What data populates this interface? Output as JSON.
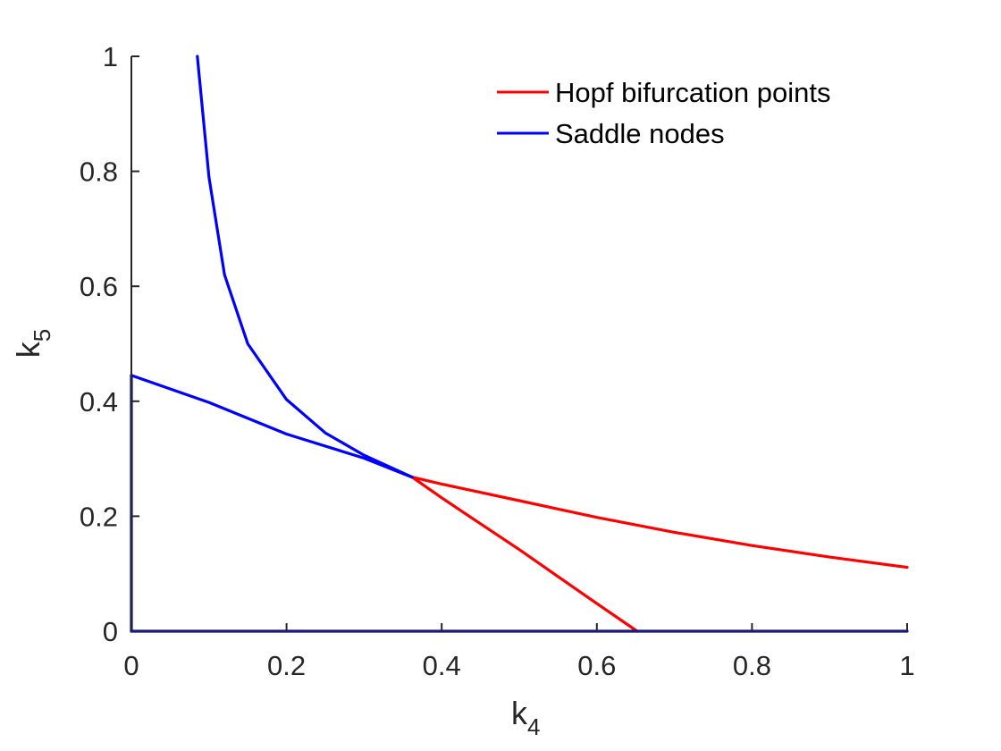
{
  "chart_data": {
    "type": "line",
    "title": "",
    "xlabel": {
      "base": "k",
      "sub": "4"
    },
    "ylabel": {
      "base": "k",
      "sub": "5"
    },
    "xlim": [
      0,
      1
    ],
    "ylim": [
      0,
      1
    ],
    "xticks": [
      "0",
      "0.2",
      "0.4",
      "0.6",
      "0.8",
      "1"
    ],
    "yticks": [
      "0",
      "0.2",
      "0.4",
      "0.6",
      "0.8",
      "1"
    ],
    "grid": false,
    "legend_position": "top-right",
    "legend": [
      {
        "label": "Hopf bifurcation points",
        "color": "#ff0000"
      },
      {
        "label": "Saddle nodes",
        "color": "#0000ff"
      }
    ],
    "series": [
      {
        "name": "Hopf bifurcation points",
        "color": "#ff0000",
        "segments": [
          {
            "x": [
              0.302,
              0.33,
              0.362,
              0.4,
              0.5,
              0.6,
              0.7,
              0.8,
              0.9,
              1.0
            ],
            "y": [
              0.302,
              0.285,
              0.268,
              0.256,
              0.227,
              0.198,
              0.172,
              0.149,
              0.129,
              0.111
            ]
          },
          {
            "x": [
              0.362,
              0.4,
              0.45,
              0.5,
              0.55,
              0.6,
              0.652
            ],
            "y": [
              0.268,
              0.232,
              0.187,
              0.142,
              0.095,
              0.048,
              0.0
            ]
          }
        ]
      },
      {
        "name": "Saddle nodes",
        "color": "#0000ff",
        "segments": [
          {
            "x": [
              0.085,
              0.1,
              0.12,
              0.15,
              0.2,
              0.25,
              0.3,
              0.362
            ],
            "y": [
              1.0,
              0.79,
              0.62,
              0.5,
              0.403,
              0.345,
              0.306,
              0.268
            ]
          },
          {
            "x": [
              0.0,
              0.1,
              0.2,
              0.3,
              0.362
            ],
            "y": [
              0.445,
              0.398,
              0.343,
              0.301,
              0.268
            ]
          },
          {
            "x": [
              0.0,
              0.0
            ],
            "y": [
              0.0,
              0.445
            ]
          },
          {
            "x": [
              0.0,
              1.0
            ],
            "y": [
              0.0,
              0.0
            ]
          }
        ]
      }
    ]
  }
}
